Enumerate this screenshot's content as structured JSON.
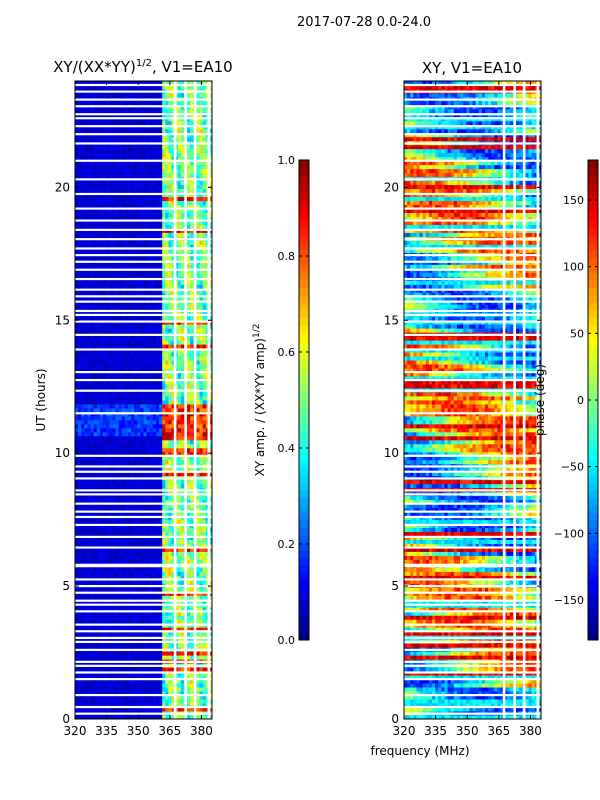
{
  "figure": {
    "suptitle": "2017-07-28 0.0-24.0",
    "shared_xlabel": "frequency (MHz)"
  },
  "chart_data": [
    {
      "type": "heatmap",
      "title": "XY/(XX*YY)",
      "title_exponent": "1/2",
      "title_suffix": ", V1=EA10",
      "xlabel": "",
      "ylabel": "UT (hours)",
      "xlim": [
        320,
        385
      ],
      "ylim": [
        0,
        24
      ],
      "xticks": [
        320,
        335,
        350,
        365,
        380
      ],
      "yticks": [
        0,
        5,
        10,
        15,
        20
      ],
      "grid": false,
      "colorbar": {
        "label": "XY amp. / (XX*YY amp)",
        "label_exponent": "1/2",
        "range": [
          0.0,
          1.0
        ],
        "ticks": [
          "0.0",
          "0.2",
          "0.4",
          "0.6",
          "0.8",
          "1.0"
        ],
        "colormap": "jet"
      },
      "features": {
        "active_band_mhz": [
          361,
          385
        ],
        "bright_band_hours": [
          10.6,
          11.8
        ],
        "background_level": 0.05
      }
    },
    {
      "type": "heatmap",
      "title": "XY, V1=EA10",
      "xlabel": "",
      "ylabel": "",
      "xlim": [
        320,
        385
      ],
      "ylim": [
        0,
        24
      ],
      "xticks": [
        320,
        335,
        350,
        365,
        380
      ],
      "yticks": [
        0,
        5,
        10,
        15,
        20
      ],
      "grid": false,
      "colorbar": {
        "label": "phase (deg)",
        "range": [
          -180,
          180
        ],
        "ticks": [
          "−150",
          "−100",
          "−50",
          "0",
          "50",
          "100",
          "150"
        ],
        "colormap": "jet"
      }
    }
  ],
  "flag_gaps_hours": [
    0.2,
    0.45,
    0.9,
    1.5,
    1.75,
    2.0,
    2.15,
    2.6,
    2.9,
    3.05,
    3.3,
    3.55,
    4.05,
    4.3,
    4.45,
    4.75,
    5.0,
    5.25,
    5.75,
    5.8,
    6.45,
    6.85,
    7.3,
    7.6,
    7.8,
    8.1,
    8.45,
    8.6,
    9.05,
    9.3,
    9.5,
    9.9,
    11.5,
    12.35,
    12.75,
    13.05,
    13.9,
    14.45,
    14.95,
    15.2,
    15.35,
    15.7,
    15.9,
    16.15,
    16.55,
    16.9,
    17.2,
    17.45,
    17.7,
    18.05,
    18.4,
    18.75,
    19.2,
    19.75,
    20.3,
    21.0,
    21.65,
    22.0,
    22.3,
    22.6,
    22.75,
    23.05,
    23.3,
    23.6,
    23.85
  ],
  "flag_channels_mhz": [
    367.5,
    372.5,
    377.0,
    383.5
  ]
}
